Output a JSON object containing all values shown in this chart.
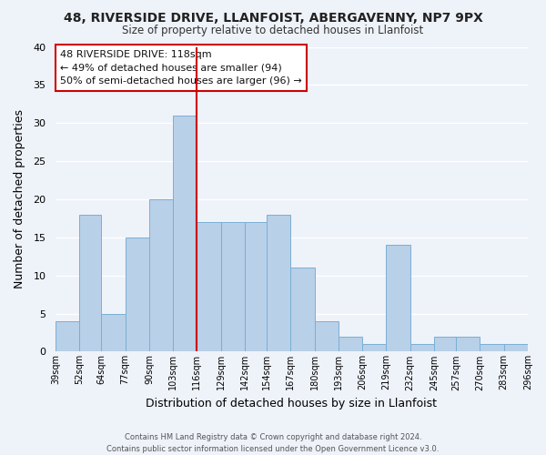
{
  "title": "48, RIVERSIDE DRIVE, LLANFOIST, ABERGAVENNY, NP7 9PX",
  "subtitle": "Size of property relative to detached houses in Llanfoist",
  "xlabel": "Distribution of detached houses by size in Llanfoist",
  "ylabel": "Number of detached properties",
  "bin_labels": [
    "39sqm",
    "52sqm",
    "64sqm",
    "77sqm",
    "90sqm",
    "103sqm",
    "116sqm",
    "129sqm",
    "142sqm",
    "154sqm",
    "167sqm",
    "180sqm",
    "193sqm",
    "206sqm",
    "219sqm",
    "232sqm",
    "245sqm",
    "257sqm",
    "270sqm",
    "283sqm",
    "296sqm"
  ],
  "bin_edges": [
    39,
    52,
    64,
    77,
    90,
    103,
    116,
    129,
    142,
    154,
    167,
    180,
    193,
    206,
    219,
    232,
    245,
    257,
    270,
    283,
    296
  ],
  "counts": [
    4,
    18,
    5,
    15,
    20,
    31,
    17,
    17,
    17,
    18,
    11,
    4,
    2,
    1,
    14,
    1,
    2,
    2,
    1,
    1,
    0
  ],
  "bar_color": "#b8d0e8",
  "bar_edge_color": "#7bafd4",
  "vline_x": 116,
  "vline_color": "#cc0000",
  "ylim": [
    0,
    40
  ],
  "yticks": [
    0,
    5,
    10,
    15,
    20,
    25,
    30,
    35,
    40
  ],
  "annotation_title": "48 RIVERSIDE DRIVE: 118sqm",
  "annotation_line1": "← 49% of detached houses are smaller (94)",
  "annotation_line2": "50% of semi-detached houses are larger (96) →",
  "annotation_box_color": "#ffffff",
  "annotation_box_edge": "#cc0000",
  "footer1": "Contains HM Land Registry data © Crown copyright and database right 2024.",
  "footer2": "Contains public sector information licensed under the Open Government Licence v3.0.",
  "background_color": "#eef2f9",
  "grid_color": "#ffffff",
  "spine_color": "#cccccc"
}
